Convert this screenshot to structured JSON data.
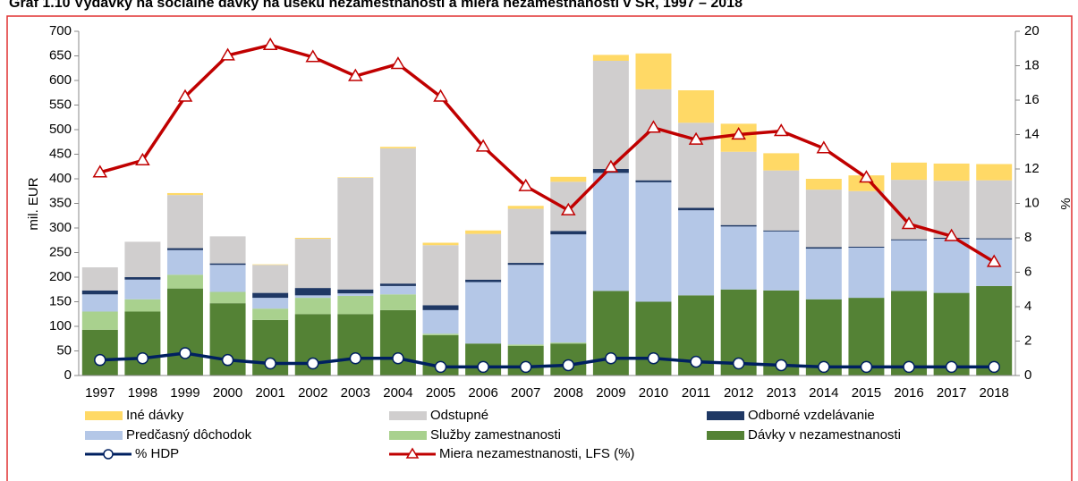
{
  "chart_data": {
    "type": "bar",
    "stacked": true,
    "title": "Graf 1.10 Výdavky na sociálne dávky na úseku nezamestnanosti a miera nezamestnanosti v SR, 1997 – 2018",
    "ylabel": "mil. EUR",
    "y2label": "%",
    "categories": [
      "1997",
      "1998",
      "1999",
      "2000",
      "2001",
      "2002",
      "2003",
      "2004",
      "2005",
      "2006",
      "2007",
      "2008",
      "2009",
      "2010",
      "2011",
      "2012",
      "2013",
      "2014",
      "2015",
      "2016",
      "2017",
      "2018"
    ],
    "ylim": [
      0,
      700
    ],
    "yticks": [
      0,
      50,
      100,
      150,
      200,
      250,
      300,
      350,
      400,
      450,
      500,
      550,
      600,
      650,
      700
    ],
    "y2lim": [
      0,
      20
    ],
    "y2ticks": [
      0,
      2,
      4,
      6,
      8,
      10,
      12,
      14,
      16,
      18,
      20
    ],
    "grid": false,
    "series": [
      {
        "name": "Dávky v nezamestnanosti",
        "color": "#548235",
        "values": [
          93,
          130,
          177,
          147,
          113,
          125,
          125,
          133,
          82,
          65,
          60,
          65,
          172,
          150,
          163,
          175,
          173,
          155,
          158,
          172,
          168,
          182
        ]
      },
      {
        "name": "Služby zamestnanosti",
        "color": "#a9d18e",
        "values": [
          37,
          25,
          28,
          23,
          23,
          33,
          37,
          32,
          3,
          0,
          3,
          2,
          0,
          0,
          0,
          0,
          0,
          0,
          0,
          0,
          0,
          0
        ]
      },
      {
        "name": "Predčasný dôchodok",
        "color": "#b4c7e7",
        "values": [
          35,
          40,
          50,
          55,
          22,
          5,
          5,
          17,
          48,
          125,
          162,
          220,
          240,
          243,
          173,
          128,
          120,
          103,
          102,
          103,
          110,
          95
        ]
      },
      {
        "name": "Odborné vzdelávanie",
        "color": "#1f3864",
        "values": [
          8,
          5,
          4,
          3,
          10,
          15,
          8,
          5,
          10,
          5,
          4,
          7,
          8,
          4,
          5,
          3,
          2,
          3,
          2,
          2,
          2,
          2
        ]
      },
      {
        "name": "Odstupné",
        "color": "#d0cece",
        "values": [
          47,
          72,
          108,
          55,
          57,
          100,
          227,
          275,
          122,
          93,
          110,
          100,
          220,
          185,
          173,
          149,
          122,
          117,
          113,
          121,
          116,
          118
        ]
      },
      {
        "name": "Iné dávky",
        "color": "#ffd966",
        "values": [
          0,
          0,
          4,
          0,
          1,
          2,
          1,
          3,
          5,
          7,
          6,
          10,
          12,
          73,
          66,
          57,
          35,
          22,
          32,
          35,
          35,
          33
        ]
      },
      {
        "name": "% HDP",
        "type": "line",
        "axis": "y2",
        "color": "#002060",
        "marker": "circle",
        "values": [
          0.9,
          1.0,
          1.3,
          0.9,
          0.7,
          0.7,
          1.0,
          1.0,
          0.5,
          0.5,
          0.5,
          0.6,
          1.0,
          1.0,
          0.8,
          0.7,
          0.6,
          0.5,
          0.5,
          0.5,
          0.5,
          0.5
        ]
      },
      {
        "name": "Miera nezamestnanosti, LFS  (%)",
        "type": "line",
        "axis": "y2",
        "color": "#c00000",
        "marker": "triangle",
        "values": [
          11.8,
          12.5,
          16.2,
          18.6,
          19.2,
          18.5,
          17.4,
          18.1,
          16.2,
          13.3,
          11.0,
          9.6,
          12.1,
          14.4,
          13.7,
          14.0,
          14.2,
          13.2,
          11.5,
          8.8,
          8.1,
          6.6
        ]
      }
    ]
  }
}
